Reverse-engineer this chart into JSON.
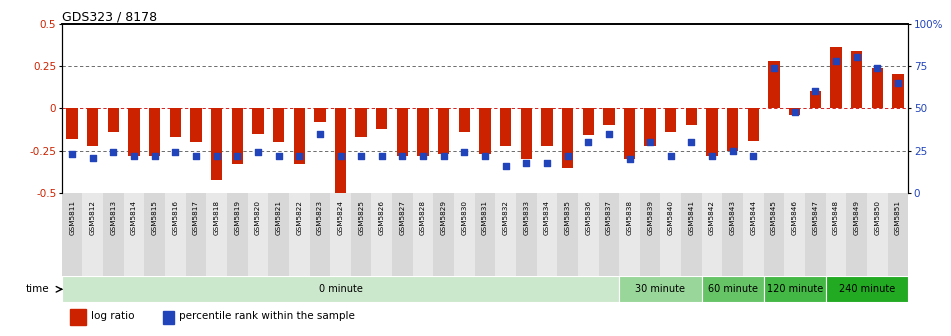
{
  "title": "GDS323 / 8178",
  "samples": [
    "GSM5811",
    "GSM5812",
    "GSM5813",
    "GSM5814",
    "GSM5815",
    "GSM5816",
    "GSM5817",
    "GSM5818",
    "GSM5819",
    "GSM5820",
    "GSM5821",
    "GSM5822",
    "GSM5823",
    "GSM5824",
    "GSM5825",
    "GSM5826",
    "GSM5827",
    "GSM5828",
    "GSM5829",
    "GSM5830",
    "GSM5831",
    "GSM5832",
    "GSM5833",
    "GSM5834",
    "GSM5835",
    "GSM5836",
    "GSM5837",
    "GSM5838",
    "GSM5839",
    "GSM5840",
    "GSM5841",
    "GSM5842",
    "GSM5843",
    "GSM5844",
    "GSM5845",
    "GSM5846",
    "GSM5847",
    "GSM5848",
    "GSM5849",
    "GSM5850",
    "GSM5851"
  ],
  "log_ratio": [
    -0.18,
    -0.22,
    -0.14,
    -0.28,
    -0.28,
    -0.17,
    -0.2,
    -0.42,
    -0.33,
    -0.15,
    -0.2,
    -0.33,
    -0.08,
    -0.52,
    -0.17,
    -0.12,
    -0.28,
    -0.28,
    -0.27,
    -0.14,
    -0.27,
    -0.22,
    -0.3,
    -0.22,
    -0.35,
    -0.16,
    -0.1,
    -0.3,
    -0.22,
    -0.14,
    -0.1,
    -0.28,
    -0.25,
    -0.19,
    0.28,
    -0.04,
    0.1,
    0.36,
    0.34,
    0.24,
    0.2
  ],
  "percentile": [
    23,
    21,
    24,
    22,
    22,
    24,
    22,
    22,
    22,
    24,
    22,
    22,
    35,
    22,
    22,
    22,
    22,
    22,
    22,
    24,
    22,
    16,
    18,
    18,
    22,
    30,
    35,
    20,
    30,
    22,
    30,
    22,
    25,
    22,
    74,
    48,
    60,
    78,
    80,
    74,
    65
  ],
  "time_groups": [
    {
      "label": "0 minute",
      "start": 0,
      "end": 27,
      "color": "#cce8cc"
    },
    {
      "label": "30 minute",
      "start": 27,
      "end": 31,
      "color": "#99d699"
    },
    {
      "label": "60 minute",
      "start": 31,
      "end": 34,
      "color": "#66c466"
    },
    {
      "label": "120 minute",
      "start": 34,
      "end": 37,
      "color": "#44b844"
    },
    {
      "label": "240 minute",
      "start": 37,
      "end": 41,
      "color": "#22aa22"
    }
  ],
  "ylim": [
    -0.5,
    0.5
  ],
  "yticks_left": [
    -0.5,
    -0.25,
    0,
    0.25,
    0.5
  ],
  "ytick_labels_left": [
    "-0.5",
    "-0.25",
    "0",
    "0.25",
    "0.5"
  ],
  "right_yticks_pct": [
    0,
    25,
    50,
    75,
    100
  ],
  "bar_color": "#cc2200",
  "percentile_color": "#2244bb",
  "zero_line_color": "#cc0000",
  "bg_color": "#ffffff",
  "plot_bg_color": "#ffffff",
  "xlabel_bg": "#e8e8e8",
  "bar_width": 0.55
}
